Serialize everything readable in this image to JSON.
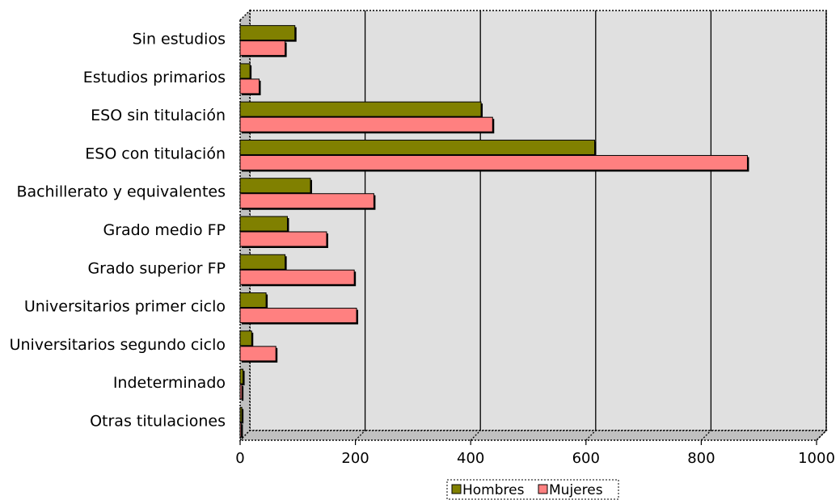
{
  "chart_data": {
    "type": "bar",
    "orientation": "horizontal",
    "categories": [
      "Sin estudios",
      "Estudios primarios",
      "ESO sin titulación",
      "ESO con titulación",
      "Bachillerato y equivalentes",
      "Grado medio FP",
      "Grado superior FP",
      "Universitarios primer ciclo",
      "Universitarios segundo ciclo",
      "Indeterminado",
      "Otras titulaciones"
    ],
    "series": [
      {
        "name": "Hombres",
        "color": "#808000",
        "values": [
          95,
          17,
          418,
          615,
          122,
          82,
          78,
          45,
          20,
          5,
          3
        ]
      },
      {
        "name": "Mujeres",
        "color": "#ff8080",
        "values": [
          78,
          33,
          438,
          880,
          232,
          150,
          198,
          202,
          62,
          3,
          2
        ]
      }
    ],
    "xlim": [
      0,
      1000
    ],
    "xticks": [
      0,
      200,
      400,
      600,
      800,
      1000
    ],
    "grid": "vertical",
    "plot_background": "#e0e0e0",
    "legend_position": "bottom"
  }
}
